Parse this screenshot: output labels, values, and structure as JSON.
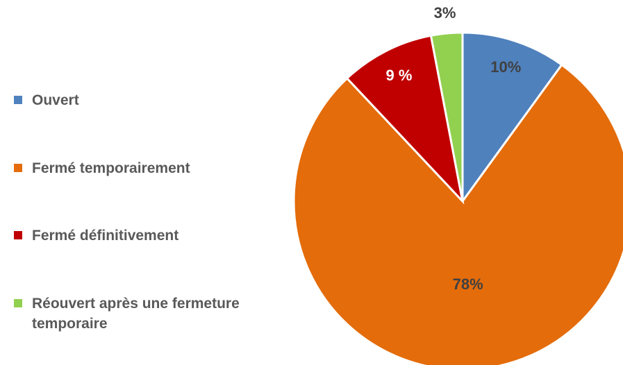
{
  "chart_data": {
    "type": "pie",
    "categories": [
      "Ouvert",
      "Fermé temporairement",
      "Fermé définitivement",
      "Réouvert après une fermeture temporaire"
    ],
    "values": [
      10,
      78,
      9,
      3
    ],
    "value_labels": [
      "10%",
      "78%",
      "9 %",
      "3%"
    ],
    "colors": [
      "#4f81bd",
      "#e46c0a",
      "#c00000",
      "#92d050"
    ],
    "legend": "left"
  }
}
